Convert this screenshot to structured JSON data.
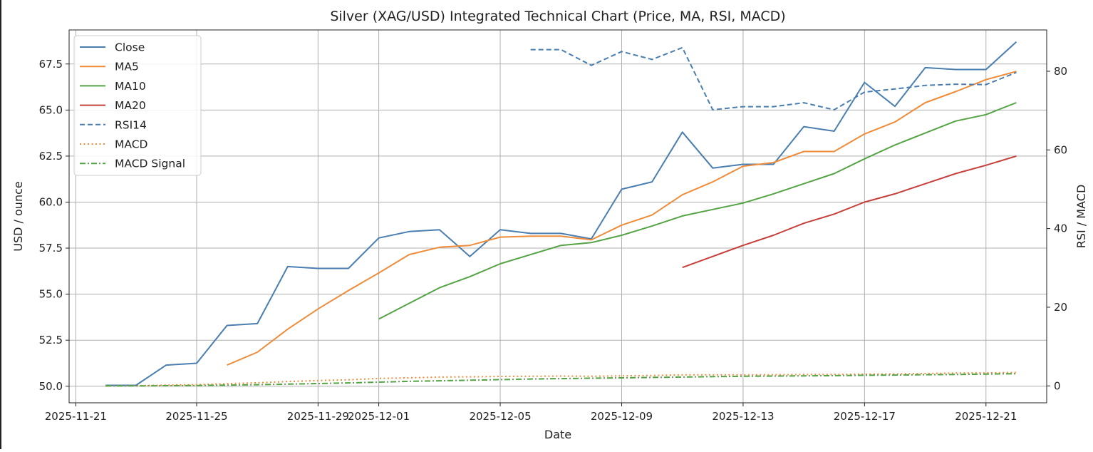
{
  "chart_data": {
    "type": "line",
    "title": "Silver (XAG/USD) Integrated Technical Chart (Price, MA, RSI, MACD)",
    "xlabel": "Date",
    "ylabel": "USD / ounce",
    "y2label": "RSI / MACD",
    "ylim": [
      49.1,
      69.35
    ],
    "y2lim": [
      -4.3,
      90.5
    ],
    "grid": true,
    "legend_position": "top-left",
    "dates": [
      "2025-11-22",
      "2025-11-23",
      "2025-11-24",
      "2025-11-25",
      "2025-11-26",
      "2025-11-27",
      "2025-11-28",
      "2025-11-29",
      "2025-11-30",
      "2025-12-01",
      "2025-12-02",
      "2025-12-03",
      "2025-12-04",
      "2025-12-05",
      "2025-12-06",
      "2025-12-07",
      "2025-12-08",
      "2025-12-09",
      "2025-12-10",
      "2025-12-11",
      "2025-12-12",
      "2025-12-13",
      "2025-12-14",
      "2025-12-15",
      "2025-12-16",
      "2025-12-17",
      "2025-12-18",
      "2025-12-19",
      "2025-12-20",
      "2025-12-21",
      "2025-12-22"
    ],
    "x_ticks": [
      {
        "index": -0.98,
        "label": "2025-11-21"
      },
      {
        "index": 3,
        "label": "2025-11-25"
      },
      {
        "index": 7,
        "label": "2025-11-29"
      },
      {
        "index": 9,
        "label": "2025-12-01"
      },
      {
        "index": 13,
        "label": "2025-12-05"
      },
      {
        "index": 17,
        "label": "2025-12-09"
      },
      {
        "index": 21,
        "label": "2025-12-13"
      },
      {
        "index": 25,
        "label": "2025-12-17"
      },
      {
        "index": 29,
        "label": "2025-12-21"
      }
    ],
    "y_ticks": [
      "50.0",
      "52.5",
      "55.0",
      "57.5",
      "60.0",
      "62.5",
      "65.0",
      "67.5"
    ],
    "y2_ticks": [
      "0",
      "20",
      "40",
      "60",
      "80"
    ],
    "series": [
      {
        "name": "Close",
        "axis": "left",
        "color": "#4a7eb0",
        "dash": "solid",
        "values": [
          50.05,
          50.05,
          51.15,
          51.25,
          53.3,
          53.4,
          56.5,
          56.4,
          56.4,
          58.05,
          58.4,
          58.5,
          57.05,
          58.5,
          58.3,
          58.3,
          58.0,
          60.7,
          61.1,
          63.8,
          61.85,
          62.05,
          62.05,
          64.1,
          63.85,
          66.5,
          65.2,
          67.3,
          67.2,
          67.2,
          68.7
        ]
      },
      {
        "name": "MA5",
        "axis": "left",
        "color": "#ef8c3a",
        "dash": "solid",
        "values": [
          null,
          null,
          null,
          null,
          51.15,
          51.85,
          53.1,
          54.2,
          55.2,
          56.15,
          57.15,
          57.55,
          57.65,
          58.1,
          58.15,
          58.15,
          57.95,
          58.75,
          59.3,
          60.4,
          61.1,
          61.95,
          62.15,
          62.75,
          62.75,
          63.7,
          64.35,
          65.4,
          66.0,
          66.65,
          67.1
        ]
      },
      {
        "name": "MA10",
        "axis": "left",
        "color": "#54a345",
        "dash": "solid",
        "values": [
          null,
          null,
          null,
          null,
          null,
          null,
          null,
          null,
          null,
          53.65,
          54.5,
          55.35,
          55.95,
          56.65,
          57.15,
          57.65,
          57.8,
          58.2,
          58.7,
          59.25,
          59.6,
          59.95,
          60.45,
          61.0,
          61.55,
          62.35,
          63.1,
          63.75,
          64.4,
          64.75,
          65.4
        ]
      },
      {
        "name": "MA20",
        "axis": "left",
        "color": "#c63f3a",
        "dash": "solid",
        "values": [
          null,
          null,
          null,
          null,
          null,
          null,
          null,
          null,
          null,
          null,
          null,
          null,
          null,
          null,
          null,
          null,
          null,
          null,
          null,
          56.45,
          57.05,
          57.65,
          58.2,
          58.85,
          59.35,
          60.0,
          60.45,
          61.0,
          61.55,
          62.0,
          62.5
        ]
      },
      {
        "name": "RSI14",
        "axis": "right",
        "color": "#4a7eb0",
        "dash": "dashed",
        "values": [
          null,
          null,
          null,
          null,
          null,
          null,
          null,
          null,
          null,
          null,
          null,
          null,
          null,
          null,
          85.5,
          85.5,
          81.5,
          85.0,
          83.0,
          86.0,
          70.2,
          71.0,
          71.0,
          72.0,
          70.2,
          74.7,
          75.5,
          76.4,
          76.7,
          76.6,
          79.7
        ]
      },
      {
        "name": "MACD",
        "axis": "right",
        "color": "#ef8c3a",
        "dash": "dotted",
        "values": [
          0,
          0.05,
          0.2,
          0.3,
          0.55,
          0.8,
          1.1,
          1.35,
          1.55,
          1.9,
          2.05,
          2.25,
          2.3,
          2.4,
          2.45,
          2.5,
          2.45,
          2.55,
          2.65,
          2.8,
          2.8,
          2.8,
          2.85,
          2.9,
          2.9,
          3.0,
          3.05,
          3.15,
          3.25,
          3.3,
          3.4
        ]
      },
      {
        "name": "MACD Signal",
        "axis": "right",
        "color": "#54a345",
        "dash": "dashdot",
        "values": [
          0,
          0,
          0.05,
          0.1,
          0.2,
          0.3,
          0.45,
          0.6,
          0.75,
          0.95,
          1.15,
          1.3,
          1.45,
          1.6,
          1.75,
          1.85,
          1.95,
          2.05,
          2.15,
          2.25,
          2.35,
          2.45,
          2.5,
          2.55,
          2.6,
          2.7,
          2.75,
          2.85,
          2.9,
          3.0,
          3.1
        ]
      }
    ]
  }
}
